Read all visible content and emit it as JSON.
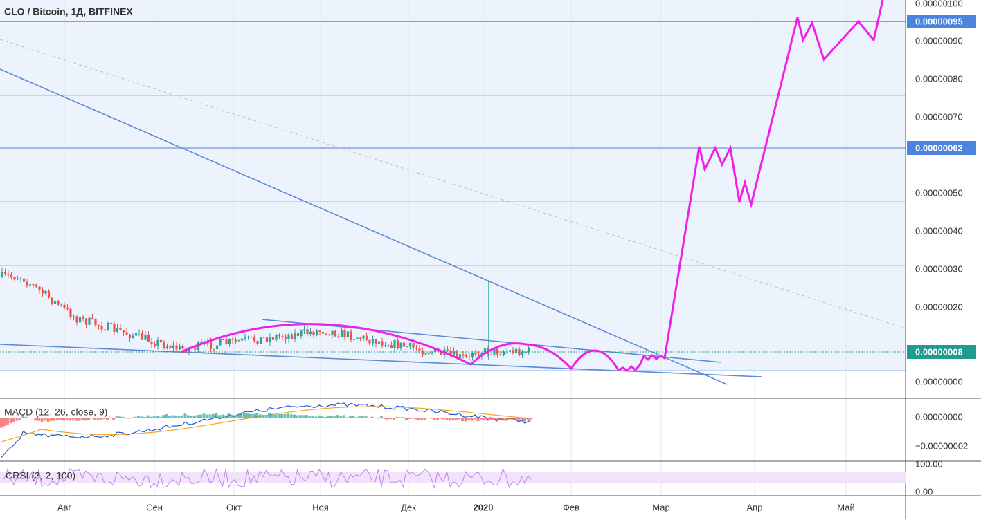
{
  "header": {
    "title": "CLO / Bitcoin, 1Д, BITFINEX"
  },
  "price_axis": {
    "labels": [
      "0.00000100",
      "0.00000090",
      "0.00000080",
      "0.00000070",
      "0.00000050",
      "0.00000040",
      "0.00000030",
      "0.00000020",
      "0.00000000"
    ]
  },
  "price_badges": [
    "0.00000095",
    "0.00000062",
    "0.00000008"
  ],
  "time_axis": {
    "labels": [
      "Авг",
      "Сен",
      "Окт",
      "Ноя",
      "Дек",
      "2020",
      "Фев",
      "Мар",
      "Апр",
      "Май"
    ]
  },
  "macd": {
    "label": "MACD (12, 26, close, 9)",
    "axis_labels": [
      "0.00000000",
      "−0.00000002"
    ]
  },
  "crsi": {
    "label": "CRSI (3, 2, 100)",
    "axis_labels": [
      "100.00",
      "0.00"
    ]
  }
}
